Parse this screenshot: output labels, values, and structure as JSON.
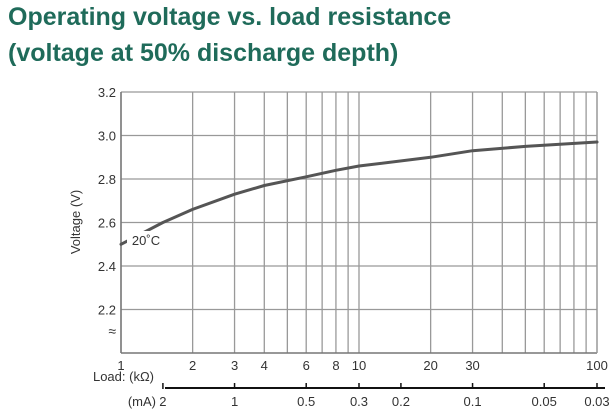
{
  "chart_data": {
    "type": "line",
    "title": "Operating voltage vs. load resistance",
    "subtitle": "(voltage at 50% discharge depth)",
    "ylabel": "Voltage (V)",
    "ylim": [
      2.0,
      3.2
    ],
    "y_ticks": [
      "2.2",
      "2.4",
      "2.6",
      "2.8",
      "3.0",
      "3.2"
    ],
    "x_scale": "log",
    "xlim": [
      1,
      100
    ],
    "x_axis_label": "Load: (kΩ)",
    "x_ticks": [
      "1",
      "2",
      "3",
      "4",
      "6",
      "8",
      "10",
      "20",
      "30",
      "100"
    ],
    "secondary_x_axis": {
      "label": "(mA)",
      "ticks": [
        "2",
        "1",
        "0.5",
        "0.3",
        "0.2",
        "0.1",
        "0.05",
        "0.03"
      ]
    },
    "grid": true,
    "axis_break": "≈",
    "series": [
      {
        "name": "20˚C",
        "x": [
          1,
          1.5,
          2,
          3,
          4,
          6,
          8,
          10,
          20,
          30,
          50,
          100
        ],
        "y": [
          2.5,
          2.6,
          2.66,
          2.73,
          2.77,
          2.81,
          2.84,
          2.86,
          2.9,
          2.93,
          2.95,
          2.97
        ]
      }
    ],
    "colors": {
      "title": "#1f6b5a",
      "line": "#555555",
      "grid": "#999999",
      "text": "#333333"
    }
  }
}
